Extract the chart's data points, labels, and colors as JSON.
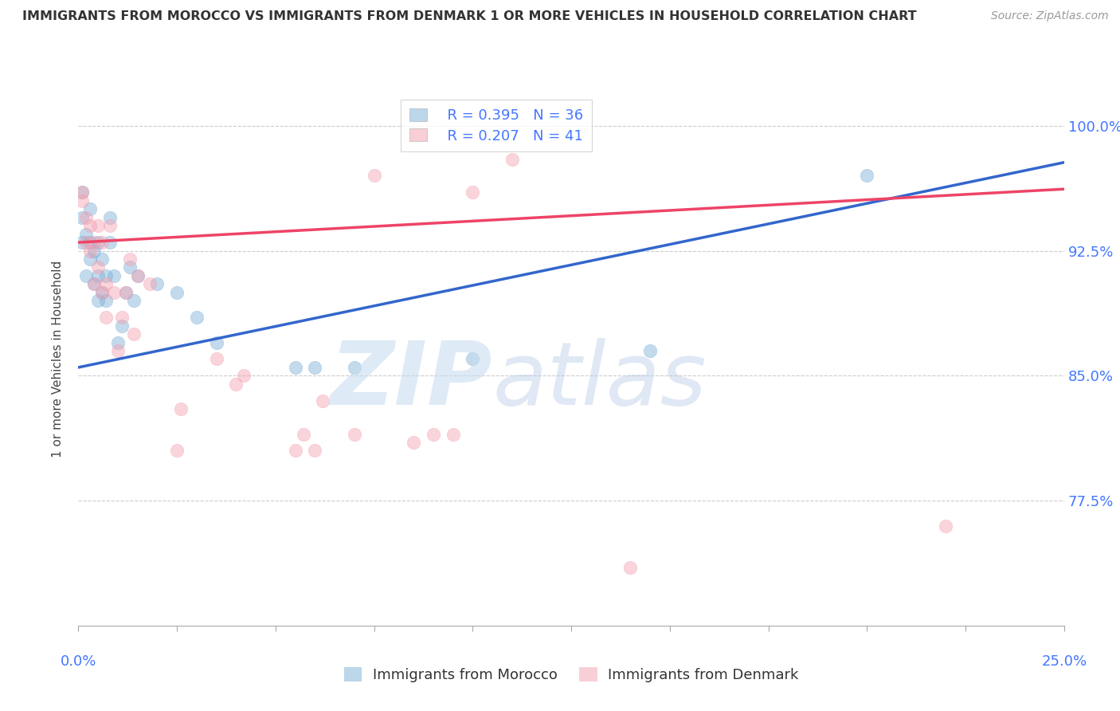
{
  "title": "IMMIGRANTS FROM MOROCCO VS IMMIGRANTS FROM DENMARK 1 OR MORE VEHICLES IN HOUSEHOLD CORRELATION CHART",
  "source": "Source: ZipAtlas.com",
  "ylabel": "1 or more Vehicles in Household",
  "legend_blue_label": "Immigrants from Morocco",
  "legend_pink_label": "Immigrants from Denmark",
  "legend_blue_R": "R = 0.395",
  "legend_blue_N": "N = 36",
  "legend_pink_R": "R = 0.207",
  "legend_pink_N": "N = 41",
  "blue_scatter_x": [
    0.001,
    0.001,
    0.001,
    0.002,
    0.002,
    0.003,
    0.003,
    0.003,
    0.004,
    0.004,
    0.005,
    0.005,
    0.005,
    0.006,
    0.006,
    0.007,
    0.007,
    0.008,
    0.008,
    0.009,
    0.01,
    0.011,
    0.012,
    0.013,
    0.014,
    0.015,
    0.02,
    0.025,
    0.03,
    0.035,
    0.055,
    0.06,
    0.07,
    0.1,
    0.145,
    0.2
  ],
  "blue_scatter_y": [
    0.93,
    0.945,
    0.96,
    0.91,
    0.935,
    0.92,
    0.93,
    0.95,
    0.905,
    0.925,
    0.895,
    0.91,
    0.93,
    0.9,
    0.92,
    0.895,
    0.91,
    0.93,
    0.945,
    0.91,
    0.87,
    0.88,
    0.9,
    0.915,
    0.895,
    0.91,
    0.905,
    0.9,
    0.885,
    0.87,
    0.855,
    0.855,
    0.855,
    0.86,
    0.865,
    0.97
  ],
  "pink_scatter_x": [
    0.001,
    0.001,
    0.002,
    0.002,
    0.003,
    0.003,
    0.004,
    0.004,
    0.005,
    0.005,
    0.006,
    0.006,
    0.007,
    0.007,
    0.008,
    0.009,
    0.01,
    0.011,
    0.012,
    0.013,
    0.014,
    0.015,
    0.018,
    0.025,
    0.026,
    0.035,
    0.04,
    0.042,
    0.055,
    0.057,
    0.06,
    0.062,
    0.07,
    0.075,
    0.085,
    0.09,
    0.095,
    0.1,
    0.11,
    0.14,
    0.22
  ],
  "pink_scatter_y": [
    0.955,
    0.96,
    0.93,
    0.945,
    0.925,
    0.94,
    0.905,
    0.93,
    0.915,
    0.94,
    0.9,
    0.93,
    0.885,
    0.905,
    0.94,
    0.9,
    0.865,
    0.885,
    0.9,
    0.92,
    0.875,
    0.91,
    0.905,
    0.805,
    0.83,
    0.86,
    0.845,
    0.85,
    0.805,
    0.815,
    0.805,
    0.835,
    0.815,
    0.97,
    0.81,
    0.815,
    0.815,
    0.96,
    0.98,
    0.735,
    0.76
  ],
  "blue_line_x": [
    0.0,
    0.25
  ],
  "blue_line_y": [
    0.855,
    0.978
  ],
  "pink_line_x": [
    0.0,
    0.25
  ],
  "pink_line_y": [
    0.93,
    0.962
  ],
  "xlim": [
    0.0,
    0.25
  ],
  "ylim": [
    0.7,
    1.02
  ],
  "yticks": [
    0.775,
    0.85,
    0.925,
    1.0
  ],
  "ytick_labels": [
    "77.5%",
    "85.0%",
    "92.5%",
    "100.0%"
  ],
  "xtick_positions": [
    0.0,
    0.025,
    0.05,
    0.075,
    0.1,
    0.125,
    0.15,
    0.175,
    0.2,
    0.225,
    0.25
  ],
  "blue_color": "#7aaed6",
  "pink_color": "#f4a0b0",
  "blue_line_color": "#3366cc",
  "pink_line_color": "#ee4466",
  "grid_color": "#cccccc",
  "title_color": "#333333",
  "source_color": "#999999",
  "axis_label_color": "#444444",
  "tick_label_color_right": "#4477ff",
  "tick_label_color_bottom": "#4477ff",
  "background_color": "#ffffff"
}
